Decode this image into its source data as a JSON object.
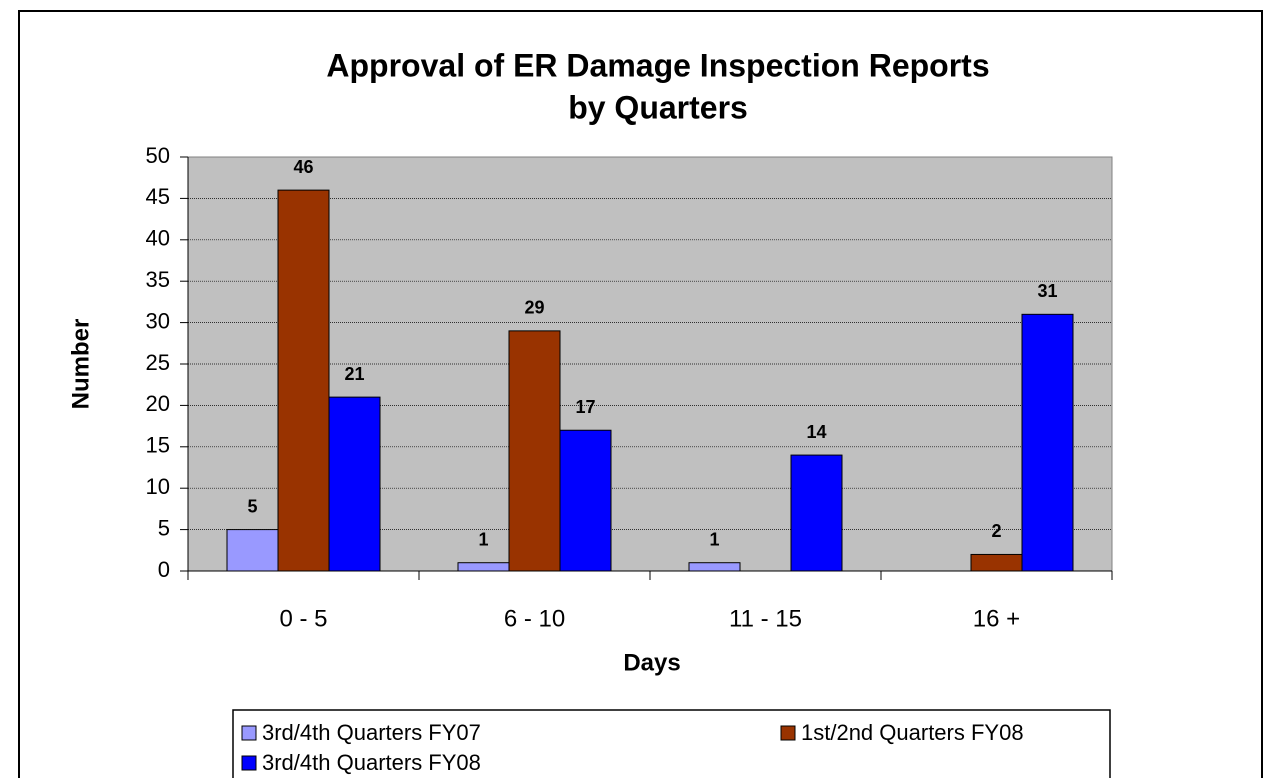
{
  "chart_data": {
    "type": "bar",
    "title": [
      "Approval of ER Damage Inspection Reports",
      "by Quarters"
    ],
    "y_label": "Number",
    "x_label": "Days",
    "categories": [
      "0 - 5",
      "6 - 10",
      "11 - 15",
      "16 +"
    ],
    "series": [
      {
        "name": "3rd/4th Quarters FY07",
        "color": "#9999ff",
        "values": [
          5,
          1,
          1,
          null
        ]
      },
      {
        "name": "1st/2nd Quarters FY08",
        "color": "#993300",
        "values": [
          46,
          29,
          null,
          2
        ]
      },
      {
        "name": "3rd/4th Quarters FY08",
        "color": "#0000ff",
        "values": [
          21,
          17,
          14,
          31
        ]
      }
    ],
    "ylim": [
      0,
      50
    ],
    "yticks": [
      0,
      5,
      10,
      15,
      20,
      25,
      30,
      35,
      40,
      45,
      50
    ],
    "grid": true,
    "legend": "bottom",
    "plot_background": "#c0c0c0"
  }
}
